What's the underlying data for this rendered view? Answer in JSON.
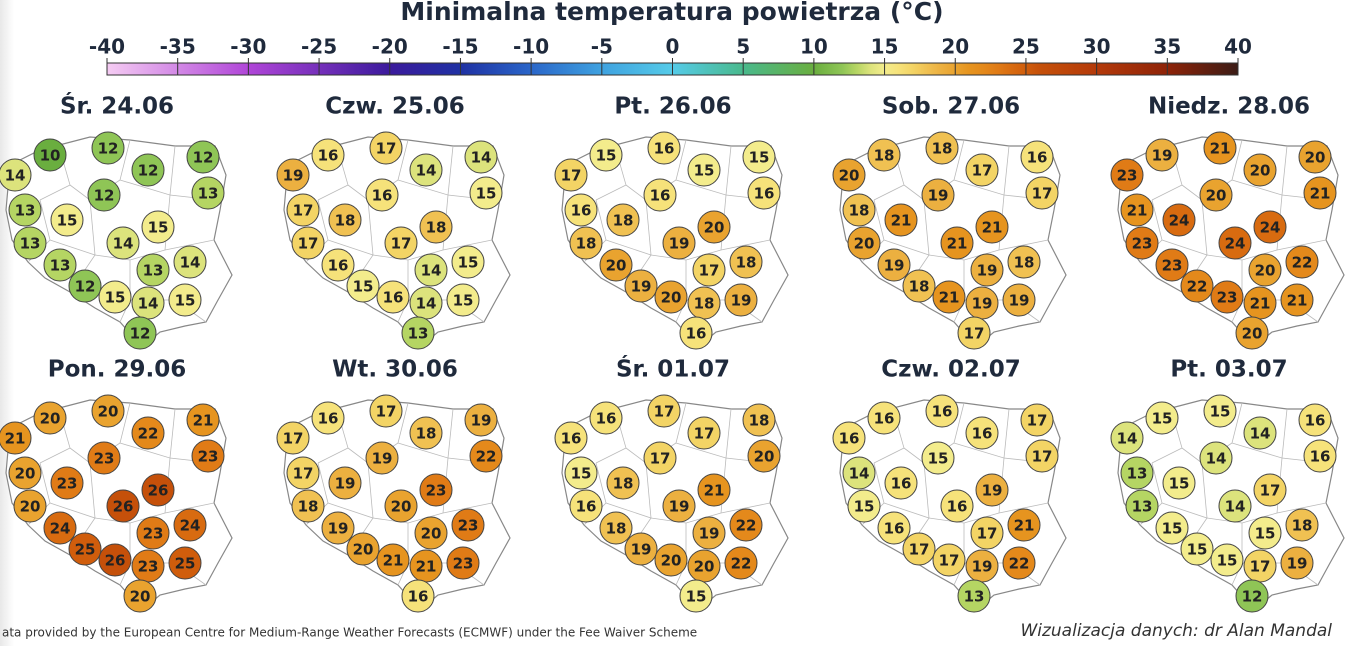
{
  "title": "Minimalna temperatura powietrza (°C)",
  "scale": {
    "ticks": [
      -40,
      -35,
      -30,
      -25,
      -20,
      -15,
      -10,
      -5,
      0,
      5,
      10,
      15,
      20,
      25,
      30,
      35,
      40
    ]
  },
  "days": [
    {
      "label": "Śr. 24.06",
      "values": [
        10,
        12,
        12,
        12,
        14,
        12,
        13,
        13,
        15,
        15,
        13,
        14,
        14,
        13,
        13,
        12,
        15,
        14,
        15,
        12
      ]
    },
    {
      "label": "Czw. 25.06",
      "values": [
        16,
        17,
        14,
        14,
        19,
        16,
        15,
        17,
        18,
        18,
        17,
        17,
        15,
        16,
        14,
        15,
        16,
        14,
        15,
        13
      ]
    },
    {
      "label": "Pt. 26.06",
      "values": [
        15,
        16,
        15,
        15,
        17,
        16,
        16,
        16,
        18,
        20,
        18,
        19,
        18,
        20,
        17,
        19,
        20,
        18,
        19,
        16
      ]
    },
    {
      "label": "Sob. 27.06",
      "values": [
        18,
        18,
        17,
        16,
        20,
        19,
        17,
        18,
        21,
        21,
        20,
        21,
        18,
        19,
        19,
        18,
        21,
        19,
        19,
        17
      ]
    },
    {
      "label": "Niedz. 28.06",
      "values": [
        19,
        21,
        20,
        20,
        23,
        20,
        21,
        21,
        24,
        24,
        23,
        24,
        22,
        23,
        20,
        22,
        23,
        21,
        21,
        20
      ]
    },
    {
      "label": "Pon. 29.06",
      "values": [
        20,
        20,
        22,
        21,
        21,
        23,
        23,
        20,
        23,
        26,
        20,
        26,
        24,
        24,
        23,
        25,
        26,
        23,
        25,
        20
      ]
    },
    {
      "label": "Wt. 30.06",
      "values": [
        16,
        17,
        18,
        19,
        17,
        19,
        22,
        17,
        19,
        23,
        18,
        20,
        23,
        19,
        20,
        20,
        21,
        21,
        23,
        16
      ]
    },
    {
      "label": "Śr. 01.07",
      "values": [
        16,
        17,
        17,
        18,
        16,
        17,
        20,
        15,
        18,
        21,
        16,
        19,
        22,
        18,
        19,
        19,
        20,
        20,
        22,
        15
      ]
    },
    {
      "label": "Czw. 02.07",
      "values": [
        16,
        16,
        16,
        17,
        16,
        15,
        17,
        14,
        16,
        19,
        15,
        16,
        21,
        16,
        17,
        17,
        17,
        19,
        22,
        13
      ]
    },
    {
      "label": "Pt. 03.07",
      "values": [
        15,
        15,
        14,
        16,
        14,
        14,
        16,
        13,
        15,
        17,
        13,
        14,
        18,
        15,
        15,
        15,
        15,
        17,
        19,
        12
      ]
    }
  ],
  "footer": {
    "source": "ata provided by the European Centre for Medium-Range Weather Forecasts (ECMWF) under the Fee Waiver Scheme",
    "credit": "Wizualizacja danych: dr Alan Mandal"
  }
}
